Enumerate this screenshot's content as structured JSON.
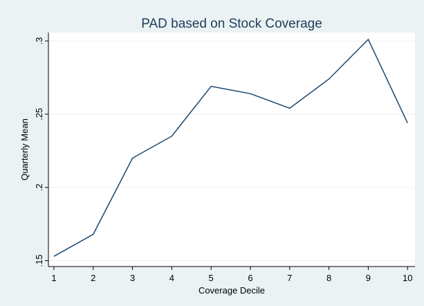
{
  "chart_data": {
    "type": "line",
    "title": "PAD based on Stock Coverage",
    "xlabel": "Coverage Decile",
    "ylabel": "Quarterly Mean",
    "x": [
      1,
      2,
      3,
      4,
      5,
      6,
      7,
      8,
      9,
      10
    ],
    "series": [
      {
        "name": "Quarterly Mean",
        "color": "#1a476f",
        "values": [
          0.153,
          0.168,
          0.22,
          0.235,
          0.269,
          0.264,
          0.254,
          0.274,
          0.301,
          0.244
        ]
      }
    ],
    "xlim": [
      0.86,
      10.19
    ],
    "xticks": [
      1,
      2,
      3,
      4,
      5,
      6,
      7,
      8,
      9,
      10
    ],
    "ylim": [
      0.146,
      0.3057
    ],
    "yticks": [
      {
        "value": 0.15,
        "label": ".15"
      },
      {
        "value": 0.2,
        "label": ".2"
      },
      {
        "value": 0.25,
        "label": ".25"
      },
      {
        "value": 0.3,
        "label": ".3"
      }
    ],
    "grid": true
  }
}
